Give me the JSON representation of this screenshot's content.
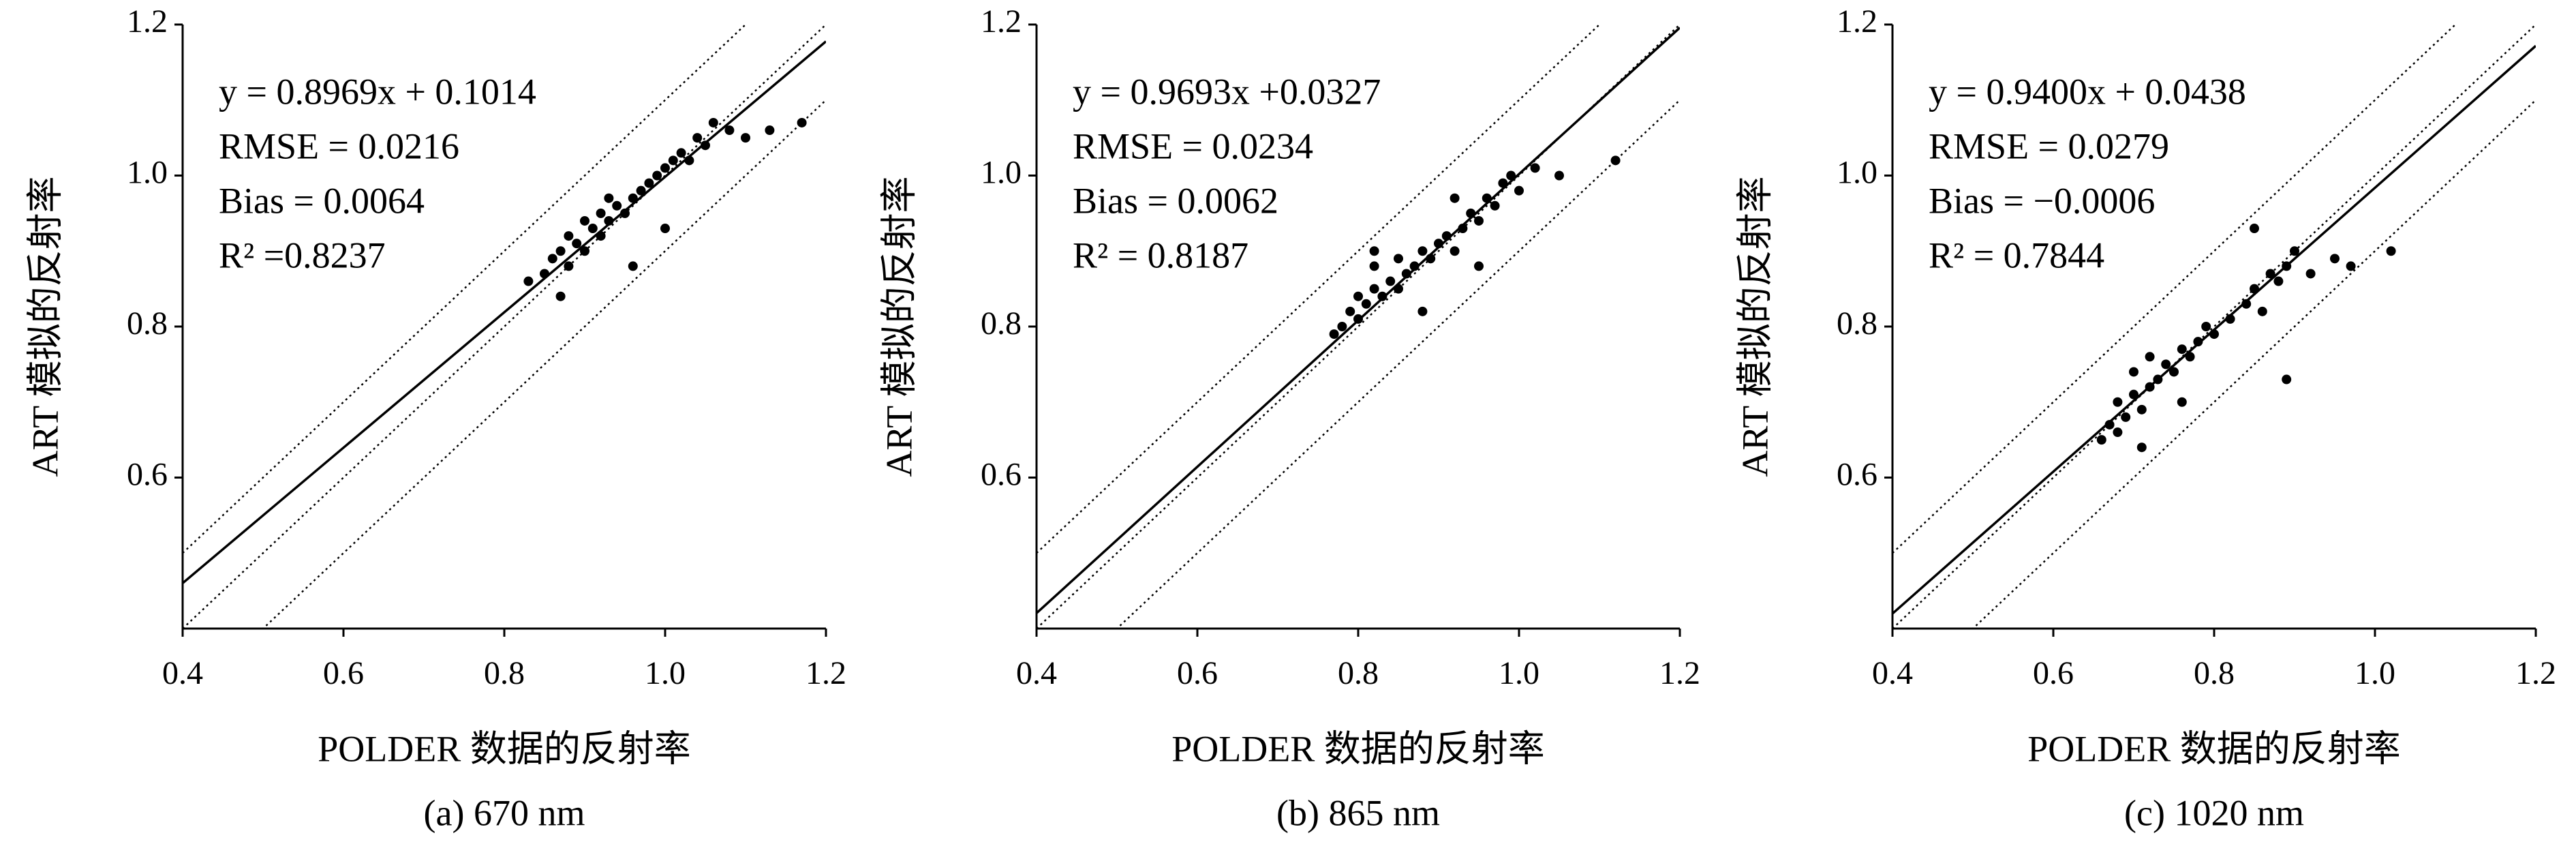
{
  "chart_data": [
    {
      "type": "scatter",
      "caption": "(a) 670 nm",
      "xlabel": "POLDER 数据的反射率",
      "ylabel": "ART 模拟的反射率",
      "annotations": [
        "y = 0.8969x + 0.1014",
        "RMSE = 0.0216",
        "Bias = 0.0064",
        "R² =0.8237"
      ],
      "fit": {
        "slope": 0.8969,
        "intercept": 0.1014
      },
      "band": 0.1,
      "color": "#000000",
      "xlim": [
        0.4,
        1.2
      ],
      "ylim": [
        0.4,
        1.2
      ],
      "xticks": [
        0.4,
        0.6,
        0.8,
        {
          "value": 1,
          "label": "1.0"
        },
        1.2
      ],
      "yticks": [
        0.6,
        0.8,
        {
          "value": 1,
          "label": "1.0"
        },
        1.2
      ],
      "x": [
        0.83,
        0.85,
        0.86,
        0.87,
        0.88,
        0.88,
        0.89,
        0.9,
        0.9,
        0.91,
        0.92,
        0.92,
        0.93,
        0.94,
        0.95,
        0.96,
        0.97,
        0.98,
        0.99,
        1.0,
        1.01,
        1.02,
        1.03,
        1.04,
        1.05,
        1.06,
        1.08,
        1.1,
        1.13,
        1.17,
        0.96,
        0.93,
        0.87,
        1.0
      ],
      "y": [
        0.86,
        0.87,
        0.89,
        0.9,
        0.88,
        0.92,
        0.91,
        0.9,
        0.94,
        0.93,
        0.92,
        0.95,
        0.94,
        0.96,
        0.95,
        0.97,
        0.98,
        0.99,
        1.0,
        1.01,
        1.02,
        1.03,
        1.02,
        1.05,
        1.04,
        1.07,
        1.06,
        1.05,
        1.06,
        1.07,
        0.88,
        0.97,
        0.84,
        0.93
      ]
    },
    {
      "type": "scatter",
      "caption": "(b) 865 nm",
      "xlabel": "POLDER 数据的反射率",
      "ylabel": "ART 模拟的反射率",
      "annotations": [
        "y = 0.9693x +0.0327",
        "RMSE = 0.0234",
        "Bias = 0.0062",
        "R² = 0.8187"
      ],
      "fit": {
        "slope": 0.9693,
        "intercept": 0.0327
      },
      "band": 0.1,
      "color": "#000000",
      "xlim": [
        0.4,
        1.2
      ],
      "ylim": [
        0.4,
        1.2
      ],
      "xticks": [
        0.4,
        0.6,
        0.8,
        {
          "value": 1,
          "label": "1.0"
        },
        1.2
      ],
      "yticks": [
        0.6,
        0.8,
        {
          "value": 1,
          "label": "1.0"
        },
        1.2
      ],
      "x": [
        0.77,
        0.78,
        0.79,
        0.8,
        0.8,
        0.81,
        0.82,
        0.82,
        0.83,
        0.84,
        0.85,
        0.85,
        0.86,
        0.87,
        0.88,
        0.89,
        0.9,
        0.91,
        0.92,
        0.93,
        0.94,
        0.95,
        0.96,
        0.97,
        0.98,
        0.99,
        1.0,
        1.02,
        1.05,
        1.12,
        0.88,
        0.95,
        0.82,
        0.92
      ],
      "y": [
        0.79,
        0.8,
        0.82,
        0.81,
        0.84,
        0.83,
        0.85,
        0.88,
        0.84,
        0.86,
        0.85,
        0.89,
        0.87,
        0.88,
        0.9,
        0.89,
        0.91,
        0.92,
        0.9,
        0.93,
        0.95,
        0.94,
        0.97,
        0.96,
        0.99,
        1.0,
        0.98,
        1.01,
        1.0,
        1.02,
        0.82,
        0.88,
        0.9,
        0.97
      ]
    },
    {
      "type": "scatter",
      "caption": "(c) 1020 nm",
      "xlabel": "POLDER 数据的反射率",
      "ylabel": "ART 模拟的反射率",
      "annotations": [
        "y = 0.9400x + 0.0438",
        "RMSE = 0.0279",
        "Bias = −0.0006",
        "R² = 0.7844"
      ],
      "fit": {
        "slope": 0.94,
        "intercept": 0.0438
      },
      "band": 0.1,
      "color": "#000000",
      "xlim": [
        0.4,
        1.2
      ],
      "ylim": [
        0.4,
        1.2
      ],
      "xticks": [
        0.4,
        0.6,
        0.8,
        {
          "value": 1,
          "label": "1.0"
        },
        1.2
      ],
      "yticks": [
        0.6,
        0.8,
        {
          "value": 1,
          "label": "1.0"
        },
        1.2
      ],
      "x": [
        0.66,
        0.67,
        0.68,
        0.68,
        0.69,
        0.7,
        0.7,
        0.71,
        0.72,
        0.72,
        0.73,
        0.74,
        0.75,
        0.76,
        0.77,
        0.78,
        0.79,
        0.8,
        0.82,
        0.84,
        0.85,
        0.86,
        0.87,
        0.88,
        0.89,
        0.9,
        0.92,
        0.95,
        0.97,
        1.02,
        0.71,
        0.76,
        0.89,
        0.85
      ],
      "y": [
        0.65,
        0.67,
        0.66,
        0.7,
        0.68,
        0.71,
        0.74,
        0.69,
        0.72,
        0.76,
        0.73,
        0.75,
        0.74,
        0.77,
        0.76,
        0.78,
        0.8,
        0.79,
        0.81,
        0.83,
        0.85,
        0.82,
        0.87,
        0.86,
        0.88,
        0.9,
        0.87,
        0.89,
        0.88,
        0.9,
        0.64,
        0.7,
        0.73,
        0.93
      ]
    }
  ]
}
